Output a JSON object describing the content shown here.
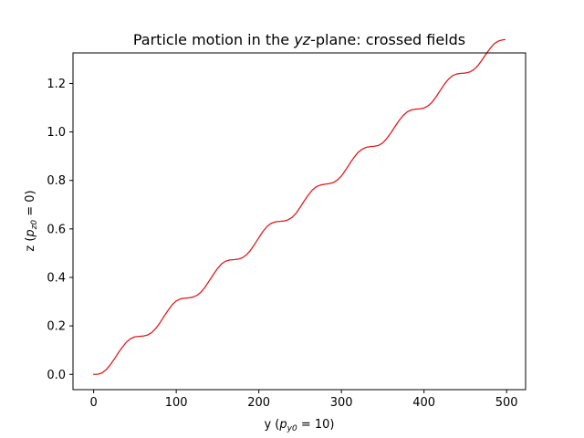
{
  "chart_data": {
    "type": "line",
    "title": {
      "prefix": "Particle motion in the ",
      "italic": "yz",
      "suffix": "-plane: crossed fields"
    },
    "xlabel": {
      "prefix": "y (",
      "var": "p",
      "sub": "y0",
      "suffix": " = 10)"
    },
    "ylabel": {
      "prefix": "z (",
      "var": "p",
      "sub": "z0",
      "suffix": " = 0)"
    },
    "xlim": [
      -25,
      523
    ],
    "ylim": [
      -0.063,
      1.326
    ],
    "xticks": [
      0,
      100,
      200,
      300,
      400,
      500
    ],
    "xtick_labels": [
      "0",
      "100",
      "200",
      "300",
      "400",
      "500"
    ],
    "yticks": [
      0.0,
      0.2,
      0.4,
      0.6,
      0.8,
      1.0,
      1.2
    ],
    "ytick_labels": [
      "0.0",
      "0.2",
      "0.4",
      "0.6",
      "0.8",
      "1.0",
      "1.2"
    ],
    "grid": false,
    "legend": "none",
    "series": [
      {
        "color": "#e41a1c",
        "x": [
          0,
          5,
          10,
          15,
          20,
          25,
          30,
          35,
          40,
          45,
          50,
          55,
          60,
          65,
          70,
          75,
          80,
          85,
          90,
          95,
          100,
          105,
          110,
          115,
          120,
          125,
          130,
          135,
          140,
          145,
          150,
          155,
          160,
          165,
          170,
          175,
          180,
          185,
          190,
          195,
          200,
          205,
          210,
          215,
          220,
          225,
          230,
          235,
          240,
          245,
          250,
          255,
          260,
          265,
          270,
          275,
          280,
          285,
          290,
          295,
          300,
          305,
          310,
          315,
          320,
          325,
          330,
          335,
          340,
          345,
          350,
          355,
          360,
          365,
          370,
          375,
          380,
          385,
          390,
          395,
          400,
          405,
          410,
          415,
          420,
          425,
          430,
          435,
          440,
          445,
          450,
          455,
          460,
          465,
          470,
          475,
          480,
          485,
          490,
          495,
          498
        ],
        "y": [
          0.0,
          0.0004,
          0.0059,
          0.0188,
          0.0389,
          0.0629,
          0.0894,
          0.1135,
          0.1342,
          0.1478,
          0.1549,
          0.1568,
          0.158,
          0.1619,
          0.1715,
          0.1884,
          0.2111,
          0.2384,
          0.2637,
          0.2866,
          0.3029,
          0.3113,
          0.3143,
          0.3156,
          0.3183,
          0.3258,
          0.3395,
          0.36,
          0.3862,
          0.4123,
          0.4365,
          0.4563,
          0.4673,
          0.4721,
          0.4735,
          0.4754,
          0.4809,
          0.4931,
          0.5124,
          0.5371,
          0.5641,
          0.5896,
          0.6104,
          0.6232,
          0.6292,
          0.631,
          0.6325,
          0.6369,
          0.6469,
          0.6641,
          0.6892,
          0.7158,
          0.7403,
          0.7614,
          0.7749,
          0.7814,
          0.7844,
          0.7867,
          0.7908,
          0.8014,
          0.8185,
          0.8426,
          0.8689,
          0.8937,
          0.9154,
          0.9287,
          0.9363,
          0.9396,
          0.9412,
          0.9445,
          0.9547,
          0.9734,
          0.9967,
          1.0231,
          1.0479,
          1.0692,
          1.0837,
          1.0912,
          1.094,
          1.0953,
          1.0985,
          1.1077,
          1.1234,
          1.1467,
          1.1729,
          1.1983,
          1.2193,
          1.2331,
          1.2397,
          1.2417,
          1.243,
          1.2468,
          1.2562,
          1.2723,
          1.2958,
          1.3207,
          1.3443,
          1.3639,
          1.3747,
          1.3795,
          1.381
        ]
      }
    ]
  }
}
